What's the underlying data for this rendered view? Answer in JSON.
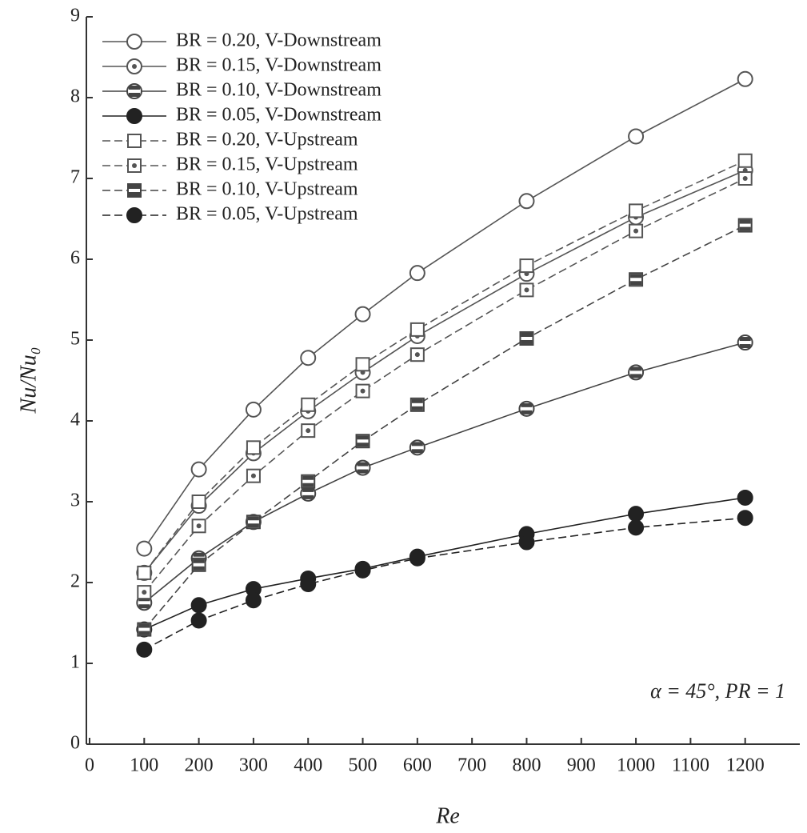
{
  "chart_data": {
    "type": "line",
    "x_label": "Re",
    "y_label": "Nu/Nu₀",
    "annotation": "α = 45°, PR = 1",
    "xlim": [
      0,
      1300
    ],
    "ylim": [
      0,
      9
    ],
    "xticks": [
      0,
      100,
      200,
      300,
      400,
      500,
      600,
      700,
      800,
      900,
      1000,
      1100,
      1200
    ],
    "yticks": [
      0,
      1,
      2,
      3,
      4,
      5,
      6,
      7,
      8,
      9
    ],
    "grid": false,
    "legend": "upper left",
    "x": [
      100,
      200,
      300,
      400,
      500,
      600,
      800,
      1000,
      1200
    ],
    "series": [
      {
        "name": "BR = 0.20, V-Downstream",
        "color": "#555555",
        "marker": "circle-open",
        "dashed": false,
        "values": [
          2.42,
          3.4,
          4.14,
          4.78,
          5.32,
          5.83,
          6.72,
          7.52,
          8.23
        ]
      },
      {
        "name": "BR = 0.15, V-Downstream",
        "color": "#555555",
        "marker": "circle-dot",
        "dashed": false,
        "values": [
          2.12,
          2.95,
          3.6,
          4.12,
          4.6,
          5.05,
          5.82,
          6.52,
          7.1
        ]
      },
      {
        "name": "BR = 0.10, V-Downstream",
        "color": "#444444",
        "marker": "circle-half",
        "dashed": false,
        "values": [
          1.75,
          2.3,
          2.75,
          3.1,
          3.42,
          3.67,
          4.15,
          4.6,
          4.97
        ]
      },
      {
        "name": "BR = 0.05, V-Downstream",
        "color": "#222222",
        "marker": "circle-filled",
        "dashed": false,
        "values": [
          1.42,
          1.72,
          1.92,
          2.05,
          2.17,
          2.32,
          2.6,
          2.85,
          3.05
        ]
      },
      {
        "name": "BR = 0.20, V-Upstream",
        "color": "#555555",
        "marker": "square-open",
        "dashed": true,
        "values": [
          2.12,
          3.0,
          3.67,
          4.2,
          4.7,
          5.13,
          5.92,
          6.6,
          7.22
        ]
      },
      {
        "name": "BR = 0.15, V-Upstream",
        "color": "#555555",
        "marker": "square-dot",
        "dashed": true,
        "values": [
          1.88,
          2.7,
          3.32,
          3.88,
          4.37,
          4.82,
          5.62,
          6.35,
          7.0
        ]
      },
      {
        "name": "BR = 0.10, V-Upstream",
        "color": "#444444",
        "marker": "square-half",
        "dashed": true,
        "values": [
          1.42,
          2.22,
          2.75,
          3.25,
          3.75,
          4.2,
          5.02,
          5.75,
          6.42
        ]
      },
      {
        "name": "BR = 0.05, V-Upstream",
        "color": "#222222",
        "marker": "circle-filled",
        "dashed": true,
        "values": [
          1.17,
          1.53,
          1.78,
          1.98,
          2.15,
          2.3,
          2.5,
          2.68,
          2.8
        ]
      }
    ]
  }
}
